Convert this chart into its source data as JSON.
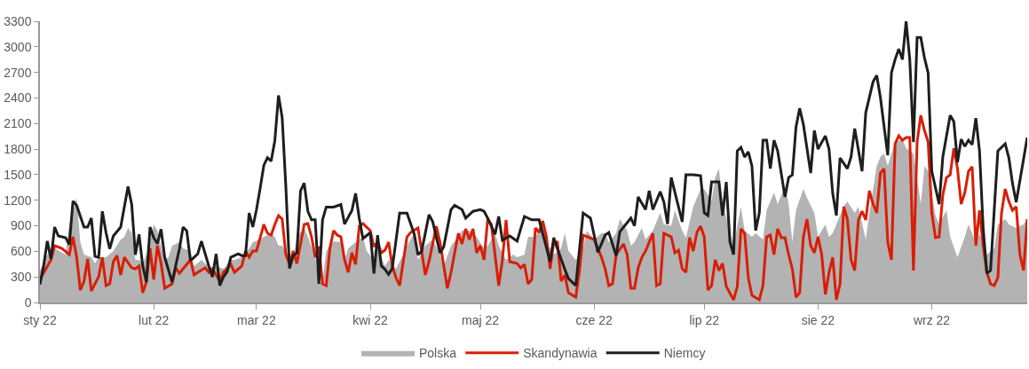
{
  "chart_data": {
    "type": "line",
    "xlim": [
      "2022-01-01",
      "2022-09-27"
    ],
    "xticks": [
      {
        "value": "2022-01-01",
        "label": "sty 22"
      },
      {
        "value": "2022-02-01",
        "label": "lut 22"
      },
      {
        "value": "2022-03-01",
        "label": "mar 22"
      },
      {
        "value": "2022-04-01",
        "label": "kwi 22"
      },
      {
        "value": "2022-05-01",
        "label": "maj 22"
      },
      {
        "value": "2022-06-01",
        "label": "cze 22"
      },
      {
        "value": "2022-07-01",
        "label": "lip 22"
      },
      {
        "value": "2022-08-01",
        "label": "sie 22"
      },
      {
        "value": "2022-09-01",
        "label": "wrz 22"
      }
    ],
    "ylim": [
      0,
      3300
    ],
    "yticks": [
      0,
      300,
      600,
      900,
      1200,
      1500,
      1800,
      2100,
      2400,
      2700,
      3000,
      3300
    ],
    "legend": "bottom",
    "marker": "none",
    "line_style": "solid",
    "series": [
      {
        "name": "Polska",
        "type": "area",
        "color": "#b3b3b3",
        "x": [
          "2022-01-01",
          "2022-01-03",
          "2022-01-05",
          "2022-01-08",
          "2022-01-09",
          "2022-01-11",
          "2022-01-12",
          "2022-01-13",
          "2022-01-15",
          "2022-01-16",
          "2022-01-17",
          "2022-01-19",
          "2022-01-21",
          "2022-01-23",
          "2022-01-24",
          "2022-01-25",
          "2022-01-26",
          "2022-01-27",
          "2022-01-28",
          "2022-01-29",
          "2022-01-30",
          "2022-02-01",
          "2022-02-02",
          "2022-02-03",
          "2022-02-04",
          "2022-02-05",
          "2022-02-06",
          "2022-02-08",
          "2022-02-09",
          "2022-02-11",
          "2022-02-12",
          "2022-02-14",
          "2022-02-15",
          "2022-02-17",
          "2022-02-18",
          "2022-02-20",
          "2022-02-22",
          "2022-02-23",
          "2022-02-25",
          "2022-02-27",
          "2022-02-28",
          "2022-03-02",
          "2022-03-03",
          "2022-03-05",
          "2022-03-06",
          "2022-03-07",
          "2022-03-08",
          "2022-03-10",
          "2022-03-11",
          "2022-03-12",
          "2022-03-14",
          "2022-03-15",
          "2022-03-17",
          "2022-03-18",
          "2022-03-19",
          "2022-03-20",
          "2022-03-22",
          "2022-03-24",
          "2022-03-25",
          "2022-03-26",
          "2022-03-28",
          "2022-03-30",
          "2022-03-31",
          "2022-04-02",
          "2022-04-03",
          "2022-04-05",
          "2022-04-06",
          "2022-04-08",
          "2022-04-10",
          "2022-04-11",
          "2022-04-13",
          "2022-04-14",
          "2022-04-16",
          "2022-04-18",
          "2022-04-20",
          "2022-04-21",
          "2022-04-23",
          "2022-04-25",
          "2022-04-26",
          "2022-04-28",
          "2022-04-30",
          "2022-05-02",
          "2022-05-03",
          "2022-05-05",
          "2022-05-06",
          "2022-05-08",
          "2022-05-10",
          "2022-05-11",
          "2022-05-13",
          "2022-05-14",
          "2022-05-16",
          "2022-05-18",
          "2022-05-19",
          "2022-05-21",
          "2022-05-23",
          "2022-05-24",
          "2022-05-25",
          "2022-05-27",
          "2022-05-29",
          "2022-05-30",
          "2022-06-01",
          "2022-06-03",
          "2022-06-04",
          "2022-06-05",
          "2022-06-07",
          "2022-06-08",
          "2022-06-10",
          "2022-06-11",
          "2022-06-12",
          "2022-06-14",
          "2022-06-15",
          "2022-06-17",
          "2022-06-19",
          "2022-06-20",
          "2022-06-22",
          "2022-06-23",
          "2022-06-25",
          "2022-06-26",
          "2022-06-28",
          "2022-06-30",
          "2022-07-01",
          "2022-07-03",
          "2022-07-04",
          "2022-07-05",
          "2022-07-06",
          "2022-07-08",
          "2022-07-09",
          "2022-07-11",
          "2022-07-12",
          "2022-07-14",
          "2022-07-15",
          "2022-07-17",
          "2022-07-18",
          "2022-07-20",
          "2022-07-21",
          "2022-07-23",
          "2022-07-24",
          "2022-07-25",
          "2022-07-26",
          "2022-07-28",
          "2022-07-29",
          "2022-07-31",
          "2022-08-01",
          "2022-08-03",
          "2022-08-04",
          "2022-08-05",
          "2022-08-07",
          "2022-08-08",
          "2022-08-09",
          "2022-08-11",
          "2022-08-12",
          "2022-08-14",
          "2022-08-15",
          "2022-08-17",
          "2022-08-18",
          "2022-08-19",
          "2022-08-20",
          "2022-08-22",
          "2022-08-24",
          "2022-08-25",
          "2022-08-27",
          "2022-08-29",
          "2022-08-30",
          "2022-08-31",
          "2022-09-02",
          "2022-09-03",
          "2022-09-05",
          "2022-09-06",
          "2022-09-08",
          "2022-09-10",
          "2022-09-11",
          "2022-09-13",
          "2022-09-14",
          "2022-09-16",
          "2022-09-18",
          "2022-09-19",
          "2022-09-21",
          "2022-09-22",
          "2022-09-24",
          "2022-09-26",
          "2022-09-27"
        ],
        "values": [
          375,
          562,
          635,
          562,
          916,
          1228,
          708,
          562,
          530,
          458,
          530,
          530,
          604,
          739,
          770,
          874,
          812,
          500,
          500,
          458,
          562,
          916,
          843,
          666,
          500,
          530,
          666,
          708,
          635,
          604,
          427,
          500,
          458,
          406,
          427,
          395,
          500,
          500,
          530,
          635,
          708,
          739,
          770,
          812,
          770,
          666,
          666,
          530,
          500,
          770,
          874,
          770,
          530,
          218,
          250,
          604,
          718,
          708,
          500,
          635,
          708,
          770,
          604,
          500,
          635,
          427,
          500,
          395,
          562,
          666,
          812,
          500,
          666,
          739,
          562,
          427,
          666,
          770,
          843,
          843,
          770,
          635,
          666,
          812,
          666,
          500,
          562,
          530,
          562,
          770,
          770,
          916,
          708,
          562,
          635,
          812,
          604,
          500,
          635,
          843,
          739,
          812,
          812,
          708,
          812,
          978,
          843,
          666,
          708,
          874,
          739,
          843,
          1051,
          916,
          900,
          1082,
          843,
          760,
          1124,
          1332,
          1332,
          1186,
          1467,
          1571,
          1155,
          843,
          666,
          1124,
          843,
          770,
          812,
          739,
          1082,
          1290,
          1155,
          1363,
          1155,
          708,
          1082,
          1332,
          1228,
          1051,
          770,
          916,
          770,
          812,
          1020,
          1124,
          1186,
          1051,
          1124,
          739,
          1051,
          1602,
          1707,
          1748,
          1602,
          1883,
          1915,
          1810,
          1748,
          1155,
          1602,
          1540,
          1020,
          916,
          1082,
          770,
          530,
          770,
          916,
          708,
          812,
          562,
          635,
          916,
          978,
          916,
          874,
          916,
          978
        ]
      },
      {
        "name": "Skandynawia",
        "color": "#d91e06",
        "x": [
          "2022-01-01",
          "2022-01-04",
          "2022-01-05",
          "2022-01-07",
          "2022-01-09",
          "2022-01-10",
          "2022-01-11",
          "2022-01-12",
          "2022-01-13",
          "2022-01-14",
          "2022-01-15",
          "2022-01-17",
          "2022-01-18",
          "2022-01-19",
          "2022-01-20",
          "2022-01-21",
          "2022-01-22",
          "2022-01-23",
          "2022-01-24",
          "2022-01-26",
          "2022-01-27",
          "2022-01-28",
          "2022-01-29",
          "2022-01-30",
          "2022-01-31",
          "2022-02-01",
          "2022-02-02",
          "2022-02-03",
          "2022-02-04",
          "2022-02-06",
          "2022-02-07",
          "2022-02-08",
          "2022-02-09",
          "2022-02-11",
          "2022-02-12",
          "2022-02-13",
          "2022-02-15",
          "2022-02-16",
          "2022-02-17",
          "2022-02-19",
          "2022-02-20",
          "2022-02-21",
          "2022-02-22",
          "2022-02-23",
          "2022-02-25",
          "2022-02-26",
          "2022-02-27",
          "2022-02-28",
          "2022-03-01",
          "2022-03-03",
          "2022-03-04",
          "2022-03-05",
          "2022-03-06",
          "2022-03-07",
          "2022-03-08",
          "2022-03-09",
          "2022-03-10",
          "2022-03-11",
          "2022-03-12",
          "2022-03-14",
          "2022-03-15",
          "2022-03-16",
          "2022-03-17",
          "2022-03-18",
          "2022-03-19",
          "2022-03-20",
          "2022-03-21",
          "2022-03-22",
          "2022-03-23",
          "2022-03-24",
          "2022-03-25",
          "2022-03-26",
          "2022-03-27",
          "2022-03-28",
          "2022-03-29",
          "2022-03-30",
          "2022-04-01",
          "2022-04-02",
          "2022-04-03",
          "2022-04-04",
          "2022-04-05",
          "2022-04-06",
          "2022-04-07",
          "2022-04-08",
          "2022-04-09",
          "2022-04-11",
          "2022-04-12",
          "2022-04-14",
          "2022-04-16",
          "2022-04-17",
          "2022-04-19",
          "2022-04-20",
          "2022-04-22",
          "2022-04-23",
          "2022-04-25",
          "2022-04-26",
          "2022-04-27",
          "2022-04-28",
          "2022-04-29",
          "2022-04-30",
          "2022-05-01",
          "2022-05-02",
          "2022-05-03",
          "2022-05-04",
          "2022-05-06",
          "2022-05-07",
          "2022-05-08",
          "2022-05-09",
          "2022-05-11",
          "2022-05-12",
          "2022-05-13",
          "2022-05-14",
          "2022-05-15",
          "2022-05-16",
          "2022-05-17",
          "2022-05-18",
          "2022-05-19",
          "2022-05-20",
          "2022-05-21",
          "2022-05-22",
          "2022-05-23",
          "2022-05-24",
          "2022-05-25",
          "2022-05-27",
          "2022-05-28",
          "2022-05-29",
          "2022-06-01",
          "2022-06-03",
          "2022-06-04",
          "2022-06-05",
          "2022-06-06",
          "2022-06-07",
          "2022-06-09",
          "2022-06-10",
          "2022-06-11",
          "2022-06-12",
          "2022-06-13",
          "2022-06-14",
          "2022-06-15",
          "2022-06-17",
          "2022-06-18",
          "2022-06-19",
          "2022-06-20",
          "2022-06-22",
          "2022-06-23",
          "2022-06-24",
          "2022-06-25",
          "2022-06-26",
          "2022-06-27",
          "2022-06-28",
          "2022-06-29",
          "2022-06-30",
          "2022-07-01",
          "2022-07-02",
          "2022-07-03",
          "2022-07-04",
          "2022-07-05",
          "2022-07-06",
          "2022-07-07",
          "2022-07-09",
          "2022-07-10",
          "2022-07-11",
          "2022-07-12",
          "2022-07-13",
          "2022-07-14",
          "2022-07-16",
          "2022-07-17",
          "2022-07-18",
          "2022-07-19",
          "2022-07-20",
          "2022-07-21",
          "2022-07-22",
          "2022-07-23",
          "2022-07-24",
          "2022-07-25",
          "2022-07-26",
          "2022-07-27",
          "2022-07-28",
          "2022-07-29",
          "2022-07-30",
          "2022-07-31",
          "2022-08-01",
          "2022-08-02",
          "2022-08-03",
          "2022-08-04",
          "2022-08-05",
          "2022-08-06",
          "2022-08-07",
          "2022-08-08",
          "2022-08-09",
          "2022-08-10",
          "2022-08-11",
          "2022-08-12",
          "2022-08-13",
          "2022-08-14",
          "2022-08-15",
          "2022-08-16",
          "2022-08-17",
          "2022-08-18",
          "2022-08-19",
          "2022-08-20",
          "2022-08-21",
          "2022-08-22",
          "2022-08-23",
          "2022-08-24",
          "2022-08-25",
          "2022-08-26",
          "2022-08-27",
          "2022-08-28",
          "2022-08-29",
          "2022-08-30",
          "2022-08-31",
          "2022-09-01",
          "2022-09-02",
          "2022-09-03",
          "2022-09-04",
          "2022-09-05",
          "2022-09-06",
          "2022-09-07",
          "2022-09-08",
          "2022-09-09",
          "2022-09-10",
          "2022-09-11",
          "2022-09-12",
          "2022-09-13",
          "2022-09-14",
          "2022-09-15",
          "2022-09-16",
          "2022-09-17",
          "2022-09-18",
          "2022-09-19",
          "2022-09-20",
          "2022-09-21",
          "2022-09-22",
          "2022-09-23",
          "2022-09-24",
          "2022-09-25",
          "2022-09-26",
          "2022-09-27"
        ],
        "values": [
          270,
          500,
          666,
          635,
          562,
          770,
          530,
          146,
          250,
          510,
          135,
          302,
          530,
          198,
          218,
          479,
          551,
          323,
          530,
          406,
          395,
          427,
          114,
          239,
          635,
          270,
          666,
          458,
          166,
          218,
          406,
          343,
          395,
          500,
          323,
          354,
          406,
          354,
          395,
          250,
          354,
          395,
          447,
          354,
          427,
          604,
          530,
          604,
          604,
          916,
          812,
          791,
          916,
          1020,
          978,
          562,
          447,
          604,
          458,
          916,
          926,
          770,
          530,
          656,
          218,
          198,
          635,
          843,
          791,
          770,
          500,
          354,
          583,
          447,
          895,
          926,
          843,
          656,
          708,
          583,
          614,
          708,
          427,
          291,
          198,
          770,
          822,
          874,
          323,
          479,
          895,
          708,
          166,
          354,
          812,
          687,
          864,
          739,
          864,
          583,
          666,
          500,
          978,
          916,
          198,
          500,
          968,
          479,
          458,
          406,
          447,
          218,
          270,
          874,
          822,
          957,
          770,
          395,
          708,
          708,
          250,
          323,
          114,
          62,
          375,
          791,
          739,
          530,
          395,
          198,
          218,
          562,
          687,
          562,
          166,
          166,
          406,
          530,
          604,
          812,
          198,
          218,
          812,
          770,
          583,
          614,
          395,
          354,
          760,
          604,
          822,
          895,
          770,
          146,
          198,
          500,
          375,
          458,
          187,
          31,
          187,
          864,
          812,
          291,
          83,
          31,
          198,
          770,
          791,
          562,
          864,
          760,
          760,
          562,
          395,
          62,
          114,
          770,
          978,
          666,
          583,
          770,
          562,
          94,
          354,
          530,
          31,
          218,
          1124,
          978,
          500,
          375,
          968,
          1072,
          968,
          1311,
          1155,
          1051,
          1519,
          1571,
          708,
          500,
          1863,
          1956,
          1904,
          1935,
          1935,
          375,
          1883,
          2196,
          2019,
          1883,
          1051,
          760,
          770,
          1259,
          1467,
          1498,
          1810,
          1571,
          1155,
          1290,
          1540,
          1592,
          666,
          1082,
          666,
          354,
          218,
          198,
          291,
          1051,
          1332,
          1186,
          1082,
          1124,
          562,
          375,
          978
        ]
      },
      {
        "name": "Niemcy",
        "color": "#1e1e1e",
        "x": [
          "2022-01-01",
          "2022-01-02",
          "2022-01-03",
          "2022-01-04",
          "2022-01-05",
          "2022-01-06",
          "2022-01-08",
          "2022-01-09",
          "2022-01-10",
          "2022-01-11",
          "2022-01-13",
          "2022-01-14",
          "2022-01-15",
          "2022-01-16",
          "2022-01-17",
          "2022-01-18",
          "2022-01-19",
          "2022-01-20",
          "2022-01-21",
          "2022-01-23",
          "2022-01-25",
          "2022-01-26",
          "2022-01-27",
          "2022-01-28",
          "2022-01-29",
          "2022-01-30",
          "2022-01-31",
          "2022-02-01",
          "2022-02-02",
          "2022-02-03",
          "2022-02-04",
          "2022-02-06",
          "2022-02-08",
          "2022-02-09",
          "2022-02-10",
          "2022-02-11",
          "2022-02-12",
          "2022-02-13",
          "2022-02-14",
          "2022-02-16",
          "2022-02-17",
          "2022-02-18",
          "2022-02-19",
          "2022-02-20",
          "2022-02-21",
          "2022-02-22",
          "2022-02-24",
          "2022-02-25",
          "2022-02-26",
          "2022-02-27",
          "2022-02-28",
          "2022-03-01",
          "2022-03-02",
          "2022-03-03",
          "2022-03-04",
          "2022-03-05",
          "2022-03-06",
          "2022-03-07",
          "2022-03-08",
          "2022-03-09",
          "2022-03-10",
          "2022-03-11",
          "2022-03-12",
          "2022-03-13",
          "2022-03-14",
          "2022-03-15",
          "2022-03-16",
          "2022-03-17",
          "2022-03-18",
          "2022-03-19",
          "2022-03-20",
          "2022-03-22",
          "2022-03-24",
          "2022-03-25",
          "2022-03-27",
          "2022-03-28",
          "2022-03-29",
          "2022-03-30",
          "2022-04-01",
          "2022-04-02",
          "2022-04-03",
          "2022-04-04",
          "2022-04-05",
          "2022-04-06",
          "2022-04-07",
          "2022-04-09",
          "2022-04-11",
          "2022-04-13",
          "2022-04-14",
          "2022-04-15",
          "2022-04-17",
          "2022-04-18",
          "2022-04-20",
          "2022-04-21",
          "2022-04-23",
          "2022-04-24",
          "2022-04-26",
          "2022-04-27",
          "2022-04-29",
          "2022-05-01",
          "2022-05-02",
          "2022-05-03",
          "2022-05-05",
          "2022-05-06",
          "2022-05-07",
          "2022-05-09",
          "2022-05-11",
          "2022-05-13",
          "2022-05-15",
          "2022-05-17",
          "2022-05-20",
          "2022-05-21",
          "2022-05-22",
          "2022-05-24",
          "2022-05-25",
          "2022-05-27",
          "2022-05-29",
          "2022-05-31",
          "2022-06-02",
          "2022-06-04",
          "2022-06-05",
          "2022-06-07",
          "2022-06-08",
          "2022-06-11",
          "2022-06-12",
          "2022-06-13",
          "2022-06-15",
          "2022-06-16",
          "2022-06-17",
          "2022-06-19",
          "2022-06-20",
          "2022-06-21",
          "2022-06-22",
          "2022-06-25",
          "2022-06-26",
          "2022-06-28",
          "2022-06-30",
          "2022-07-01",
          "2022-07-02",
          "2022-07-03",
          "2022-07-05",
          "2022-07-06",
          "2022-07-07",
          "2022-07-08",
          "2022-07-09",
          "2022-07-10",
          "2022-07-11",
          "2022-07-12",
          "2022-07-13",
          "2022-07-14",
          "2022-07-15",
          "2022-07-16",
          "2022-07-17",
          "2022-07-18",
          "2022-07-19",
          "2022-07-20",
          "2022-07-21",
          "2022-07-23",
          "2022-07-24",
          "2022-07-25",
          "2022-07-26",
          "2022-07-27",
          "2022-07-28",
          "2022-07-30",
          "2022-07-31",
          "2022-08-01",
          "2022-08-03",
          "2022-08-04",
          "2022-08-05",
          "2022-08-06",
          "2022-08-07",
          "2022-08-09",
          "2022-08-10",
          "2022-08-11",
          "2022-08-13",
          "2022-08-14",
          "2022-08-16",
          "2022-08-17",
          "2022-08-18",
          "2022-08-20",
          "2022-08-21",
          "2022-08-22",
          "2022-08-23",
          "2022-08-24",
          "2022-08-25",
          "2022-08-26",
          "2022-08-27",
          "2022-08-28",
          "2022-08-29",
          "2022-08-30",
          "2022-08-31",
          "2022-09-01",
          "2022-09-03",
          "2022-09-04",
          "2022-09-06",
          "2022-09-07",
          "2022-09-08",
          "2022-09-09",
          "2022-09-10",
          "2022-09-11",
          "2022-09-12",
          "2022-09-13",
          "2022-09-14",
          "2022-09-15",
          "2022-09-16",
          "2022-09-17",
          "2022-09-19",
          "2022-09-21",
          "2022-09-22",
          "2022-09-23",
          "2022-09-24",
          "2022-09-27"
        ],
        "values": [
          210,
          430,
          720,
          510,
          885,
          780,
          760,
          680,
          1190,
          1140,
          885,
          885,
          990,
          540,
          530,
          1070,
          820,
          630,
          780,
          885,
          1360,
          1150,
          560,
          800,
          430,
          240,
          885,
          760,
          690,
          860,
          530,
          240,
          630,
          885,
          840,
          490,
          530,
          570,
          720,
          430,
          300,
          570,
          200,
          300,
          360,
          530,
          570,
          550,
          550,
          1050,
          885,
          1090,
          1340,
          1610,
          1700,
          1660,
          1900,
          2430,
          2170,
          1360,
          400,
          550,
          580,
          1310,
          1400,
          1070,
          970,
          970,
          220,
          970,
          1120,
          1120,
          1150,
          920,
          1080,
          1280,
          990,
          750,
          820,
          340,
          790,
          430,
          390,
          330,
          400,
          1050,
          1050,
          800,
          560,
          600,
          1030,
          950,
          580,
          650,
          1090,
          1140,
          1090,
          990,
          1070,
          1090,
          1070,
          990,
          800,
          1010,
          730,
          780,
          720,
          1010,
          970,
          970,
          480,
          760,
          630,
          390,
          280,
          200,
          1050,
          990,
          590,
          790,
          820,
          550,
          830,
          990,
          900,
          1240,
          1090,
          1310,
          1090,
          1300,
          1180,
          920,
          1467,
          947,
          1498,
          1498,
          1488,
          1051,
          1020,
          1415,
          1415,
          1020,
          1415,
          708,
          562,
          1779,
          1821,
          1707,
          1769,
          1602,
          843,
          1051,
          1904,
          1904,
          1571,
          1904,
          1779,
          1238,
          1467,
          1498,
          2060,
          2279,
          2092,
          1519,
          2019,
          1800,
          1956,
          1800,
          1280,
          1020,
          1696,
          1571,
          1707,
          2040,
          1540,
          2227,
          2591,
          2664,
          2404,
          1727,
          2695,
          2851,
          2976,
          2851,
          3300,
          2851,
          1883,
          3111,
          3111,
          2872,
          2695,
          1540,
          1155,
          1707,
          2196,
          2123,
          1644,
          1915,
          1831,
          1904,
          1852,
          2164,
          1779,
          874,
          343,
          375,
          1779,
          1863,
          1696,
          1394,
          1176,
          1935
        ]
      }
    ]
  }
}
